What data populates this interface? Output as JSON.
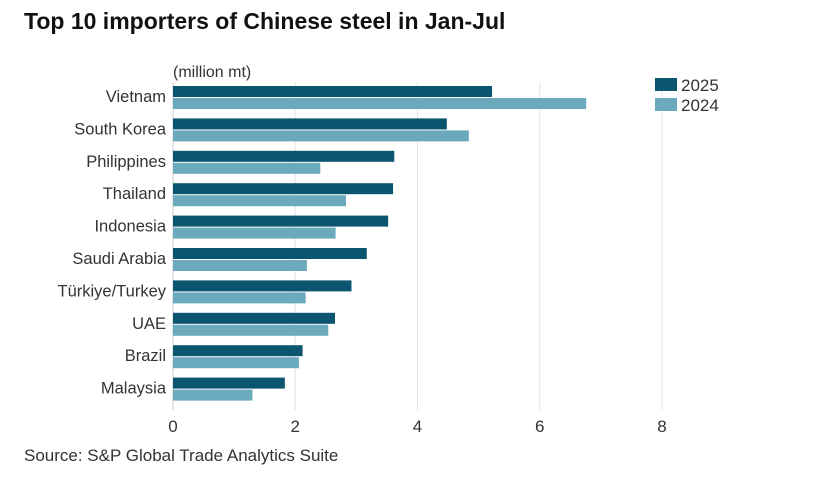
{
  "chart_data": {
    "type": "bar",
    "orientation": "horizontal",
    "title": "Top 10 importers of Chinese steel in Jan-Jul",
    "unit_label": "(million mt)",
    "source": "Source: S&P Global Trade Analytics Suite",
    "categories": [
      "Vietnam",
      "South Korea",
      "Philippines",
      "Thailand",
      "Indonesia",
      "Saudi Arabia",
      "Türkiye/Turkey",
      "UAE",
      "Brazil",
      "Malaysia"
    ],
    "series": [
      {
        "name": "2025",
        "color": "#0b5570",
        "values": [
          5.22,
          4.48,
          3.62,
          3.6,
          3.52,
          3.17,
          2.92,
          2.65,
          2.12,
          1.83
        ]
      },
      {
        "name": "2024",
        "color": "#6aaabc",
        "values": [
          6.76,
          4.84,
          2.41,
          2.83,
          2.66,
          2.19,
          2.17,
          2.54,
          2.06,
          1.3
        ]
      }
    ],
    "xlim": [
      0,
      8
    ],
    "xticks": [
      "0",
      "2",
      "4",
      "6",
      "8"
    ],
    "grid": true,
    "legend_position": "top-right"
  }
}
